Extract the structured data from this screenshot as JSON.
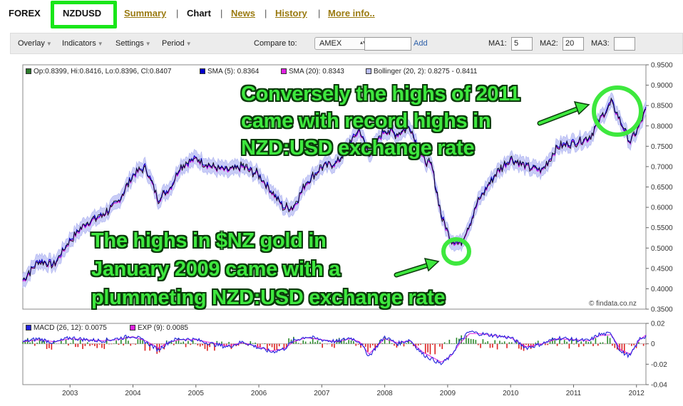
{
  "nav": {
    "forex": "FOREX",
    "symbol": "NZDUSD",
    "summary": "Summary",
    "chart": "Chart",
    "news": "News",
    "history": "History",
    "more": "More info..",
    "sep": "|"
  },
  "toolbar": {
    "overlay": "Overlay",
    "indicators": "Indicators",
    "settings": "Settings",
    "period": "Period",
    "compare_label": "Compare to:",
    "compare_value": "AMEX",
    "add": "Add",
    "ma1_label": "MA1:",
    "ma1_value": "5",
    "ma2_label": "MA2:",
    "ma2_value": "20",
    "ma3_label": "MA3:",
    "ma3_value": ""
  },
  "legend_main": {
    "ohlc": "Op:0.8399, Hi:0.8416, Lo:0.8396, Cl:0.8407",
    "sma5": "SMA (5): 0.8364",
    "sma20": "SMA (20): 0.8343",
    "bollinger": "Bollinger (20, 2): 0.8275 - 0.8411"
  },
  "legend_macd": {
    "macd": "MACD (26, 12): 0.0075",
    "exp": "EXP (9): 0.0085"
  },
  "annotations": {
    "top": [
      "Conversely the highs of 2011",
      "came with record highs in",
      "NZD:USD exchange rate"
    ],
    "bottom": [
      "The highs in $NZ gold in",
      "January 2009 came with a",
      "plummeting NZD:USD exchange rate"
    ]
  },
  "credit": "© findata.co.nz",
  "colors": {
    "annotation": "#3ee83e",
    "price_line": "#0a0a0a",
    "sma5": "#0000cc",
    "sma20": "#d400d4",
    "bollinger_fill": "#c9cdf7",
    "ohlc_square": "#2b7a2b",
    "macd": "#2222dd",
    "exp": "#e020e0"
  },
  "chart_data": [
    {
      "type": "line",
      "title": "",
      "xlabel": "",
      "ylabel": "",
      "x_ticks": [
        "2003",
        "2004",
        "2005",
        "2006",
        "2007",
        "2008",
        "2009",
        "2010",
        "2011",
        "2012"
      ],
      "y_ticks": [
        "0.9500",
        "0.9000",
        "0.8500",
        "0.8000",
        "0.7500",
        "0.7000",
        "0.6500",
        "0.6000",
        "0.5500",
        "0.5000",
        "0.4500",
        "0.4000",
        "0.3500"
      ],
      "xlim": [
        2002.25,
        2012.15
      ],
      "ylim": [
        0.35,
        0.95
      ],
      "series": [
        {
          "name": "NZDUSD",
          "x": [
            2002.25,
            2002.5,
            2002.75,
            2003.0,
            2003.25,
            2003.5,
            2003.75,
            2004.0,
            2004.2,
            2004.4,
            2004.6,
            2004.75,
            2005.0,
            2005.25,
            2005.5,
            2005.75,
            2006.0,
            2006.2,
            2006.4,
            2006.55,
            2006.75,
            2007.0,
            2007.25,
            2007.45,
            2007.6,
            2007.75,
            2008.0,
            2008.2,
            2008.4,
            2008.6,
            2008.75,
            2008.9,
            2009.05,
            2009.2,
            2009.35,
            2009.5,
            2009.75,
            2010.0,
            2010.25,
            2010.5,
            2010.75,
            2011.0,
            2011.25,
            2011.4,
            2011.6,
            2011.75,
            2011.9,
            2012.05,
            2012.15
          ],
          "y": [
            0.42,
            0.47,
            0.46,
            0.52,
            0.56,
            0.58,
            0.61,
            0.68,
            0.7,
            0.62,
            0.65,
            0.7,
            0.72,
            0.7,
            0.69,
            0.7,
            0.68,
            0.64,
            0.6,
            0.6,
            0.66,
            0.7,
            0.71,
            0.76,
            0.79,
            0.73,
            0.79,
            0.78,
            0.8,
            0.72,
            0.7,
            0.58,
            0.52,
            0.51,
            0.56,
            0.62,
            0.68,
            0.72,
            0.7,
            0.69,
            0.75,
            0.76,
            0.77,
            0.81,
            0.86,
            0.81,
            0.76,
            0.8,
            0.84
          ]
        }
      ]
    },
    {
      "type": "line",
      "title": "",
      "xlabel": "",
      "ylabel": "",
      "y_ticks": [
        "0.02",
        "0",
        "-0.02",
        "-0.04"
      ],
      "ylim": [
        -0.04,
        0.02
      ],
      "series": [
        {
          "name": "MACD (26, 12)",
          "x": [
            2002.25,
            2002.5,
            2002.75,
            2003.0,
            2003.25,
            2003.5,
            2003.75,
            2004.0,
            2004.2,
            2004.4,
            2004.6,
            2004.75,
            2005.0,
            2005.25,
            2005.5,
            2005.75,
            2006.0,
            2006.2,
            2006.4,
            2006.55,
            2006.75,
            2007.0,
            2007.25,
            2007.45,
            2007.6,
            2007.75,
            2008.0,
            2008.2,
            2008.4,
            2008.6,
            2008.75,
            2008.9,
            2009.05,
            2009.2,
            2009.35,
            2009.5,
            2009.75,
            2010.0,
            2010.25,
            2010.5,
            2010.75,
            2011.0,
            2011.25,
            2011.4,
            2011.6,
            2011.75,
            2011.9,
            2012.05,
            2012.15
          ],
          "y": [
            0.002,
            0.005,
            0.001,
            0.006,
            0.004,
            0.003,
            0.005,
            0.008,
            0.002,
            -0.006,
            0.003,
            0.005,
            0.004,
            0.0,
            -0.003,
            0.002,
            -0.004,
            -0.008,
            -0.005,
            0.003,
            0.007,
            0.004,
            0.002,
            0.006,
            0.002,
            -0.012,
            0.007,
            0.0,
            0.004,
            -0.01,
            -0.015,
            -0.02,
            -0.012,
            0.003,
            0.012,
            0.01,
            0.008,
            0.006,
            -0.004,
            0.0,
            0.006,
            0.004,
            0.003,
            0.009,
            0.01,
            -0.008,
            -0.012,
            0.005,
            0.0075
          ]
        },
        {
          "name": "EXP (9)",
          "x": [
            2002.25,
            2002.5,
            2002.75,
            2003.0,
            2003.25,
            2003.5,
            2003.75,
            2004.0,
            2004.2,
            2004.4,
            2004.6,
            2004.75,
            2005.0,
            2005.25,
            2005.5,
            2005.75,
            2006.0,
            2006.2,
            2006.4,
            2006.55,
            2006.75,
            2007.0,
            2007.25,
            2007.45,
            2007.6,
            2007.75,
            2008.0,
            2008.2,
            2008.4,
            2008.6,
            2008.75,
            2008.9,
            2009.05,
            2009.2,
            2009.35,
            2009.5,
            2009.75,
            2010.0,
            2010.25,
            2010.5,
            2010.75,
            2011.0,
            2011.25,
            2011.4,
            2011.6,
            2011.75,
            2011.9,
            2012.05,
            2012.15
          ],
          "y": [
            0.002,
            0.004,
            0.002,
            0.005,
            0.004,
            0.003,
            0.004,
            0.007,
            0.003,
            -0.004,
            0.002,
            0.004,
            0.004,
            0.001,
            -0.002,
            0.001,
            -0.003,
            -0.007,
            -0.005,
            0.002,
            0.006,
            0.004,
            0.002,
            0.005,
            0.002,
            -0.01,
            0.005,
            0.001,
            0.003,
            -0.008,
            -0.013,
            -0.018,
            -0.012,
            0.001,
            0.01,
            0.01,
            0.008,
            0.006,
            -0.003,
            0.0,
            0.005,
            0.004,
            0.003,
            0.008,
            0.009,
            -0.006,
            -0.01,
            0.004,
            0.0085
          ]
        }
      ]
    }
  ]
}
